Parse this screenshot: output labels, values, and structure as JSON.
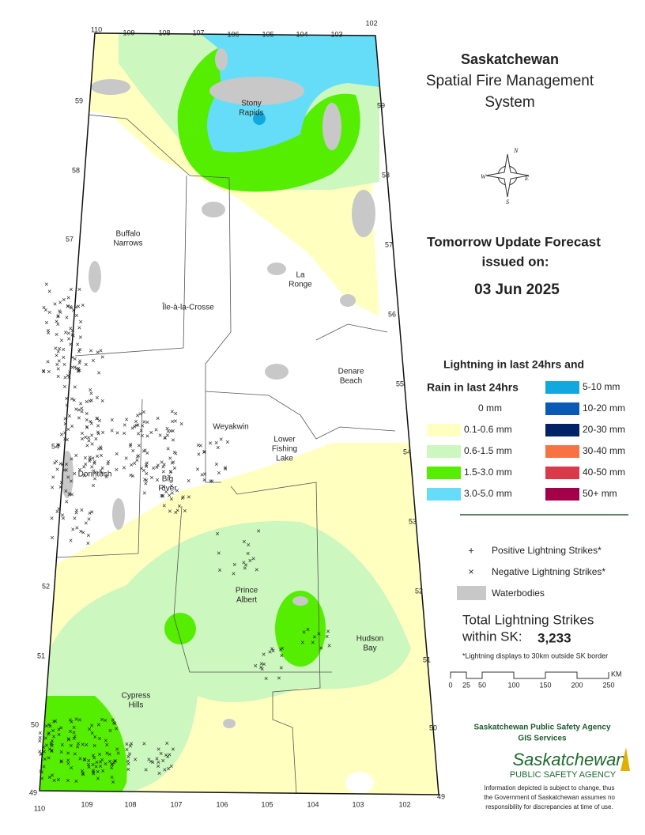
{
  "title": {
    "line1": "Saskatchewan",
    "line2": "Spatial Fire Management",
    "line3": "System"
  },
  "forecast": {
    "heading": "Tomorrow Update Forecast",
    "issued": "issued on:",
    "date": "03 Jun 2025"
  },
  "legend": {
    "lightning_title": "Lightning in last 24hrs and",
    "rain_title": "Rain in last 24hrs",
    "rain_classes": [
      {
        "label": "0 mm",
        "color": "#ffffff"
      },
      {
        "label": "0.1-0.6 mm",
        "color": "#ffffc0"
      },
      {
        "label": "0.6-1.5 mm",
        "color": "#ccf7bf"
      },
      {
        "label": "1.5-3.0 mm",
        "color": "#55ee00"
      },
      {
        "label": "3.0-5.0 mm",
        "color": "#66ddf8"
      },
      {
        "label": "5-10 mm",
        "color": "#11a8e0"
      },
      {
        "label": "10-20 mm",
        "color": "#0a5ab5"
      },
      {
        "label": "20-30 mm",
        "color": "#002266"
      },
      {
        "label": "30-40 mm",
        "color": "#f77344"
      },
      {
        "label": "40-50 mm",
        "color": "#d83a4a"
      },
      {
        "label": "50+ mm",
        "color": "#a4004a"
      }
    ],
    "positive": "Positive Lightning Strikes*",
    "negative": "Negative Lightning Strikes*",
    "water": "Waterbodies"
  },
  "total": {
    "line1": "Total Lightning Strikes",
    "line2": "within SK:",
    "value": "3,233"
  },
  "note": "*Lightning displays to 30km outside SK border",
  "scale": {
    "ticks": [
      "0",
      "25",
      "50",
      "100",
      "150",
      "200",
      "250"
    ],
    "unit": "KM"
  },
  "agency": {
    "line1": "Saskatchewan Public Safety Agency",
    "line2": "GIS  Services",
    "logo1": "Saskatchewan",
    "logo2": "PUBLIC SAFETY AGENCY",
    "disclaimer": [
      "Information depicted is subject to change, thus",
      "the Government of Saskatchewan assumes no",
      "responsibility for discrepancies at time of use."
    ]
  },
  "places": [
    {
      "lines": [
        "Stony",
        "Rapids"
      ]
    },
    {
      "lines": [
        "Buffalo",
        "Narrows"
      ]
    },
    {
      "lines": [
        "La",
        "Ronge"
      ]
    },
    {
      "lines": [
        "Île-à-la-Crosse"
      ]
    },
    {
      "lines": [
        "Denare",
        "Beach"
      ]
    },
    {
      "lines": [
        "Weyakwin"
      ]
    },
    {
      "lines": [
        "Lower",
        "Fishing",
        "Lake"
      ]
    },
    {
      "lines": [
        "Dorintosh"
      ]
    },
    {
      "lines": [
        "Big",
        "River"
      ]
    },
    {
      "lines": [
        "Prince",
        "Albert"
      ]
    },
    {
      "lines": [
        "Hudson",
        "Bay"
      ]
    },
    {
      "lines": [
        "Cypress",
        "Hills"
      ]
    }
  ],
  "lat_left": [
    "59",
    "58",
    "57",
    "54",
    "52",
    "51",
    "50",
    "49"
  ],
  "lat_right": [
    "59",
    "58",
    "57",
    "56",
    "55",
    "54",
    "53",
    "52",
    "51",
    "50",
    "49"
  ],
  "lon_top": [
    "110",
    "109",
    "108",
    "107",
    "106",
    "105",
    "104",
    "103",
    "102"
  ],
  "lon_bottom": [
    "110",
    "109",
    "108",
    "107",
    "106",
    "105",
    "104",
    "103",
    "102"
  ],
  "compass": {
    "n": "N",
    "e": "E",
    "s": "S",
    "w": "W"
  }
}
